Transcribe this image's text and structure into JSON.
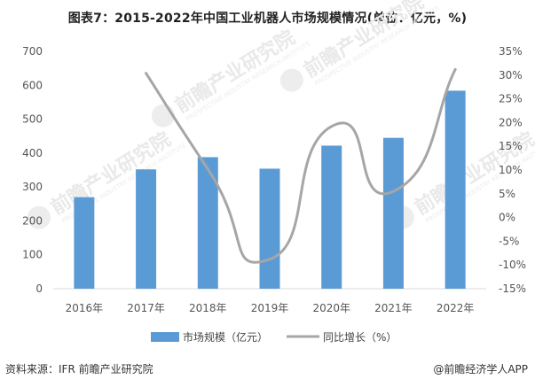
{
  "title": "图表7：2015-2022年中国工业机器人市场规模情况(单位：亿元，%)",
  "chart_data": {
    "type": "bar",
    "categories": [
      "2016年",
      "2017年",
      "2018年",
      "2019年",
      "2020年",
      "2021年",
      "2022年"
    ],
    "series": [
      {
        "name": "市场规模（亿元）",
        "type": "bar",
        "axis": "left",
        "values": [
          270,
          352,
          388,
          354,
          422,
          445,
          584
        ],
        "color": "#5b9bd5"
      },
      {
        "name": "同比增长（%）",
        "type": "line",
        "axis": "right",
        "values": [
          null,
          30.4,
          10.2,
          -8.8,
          19.2,
          5.5,
          31.2
        ],
        "color": "#a6a6a6"
      }
    ],
    "y_left": {
      "min": 0,
      "max": 700,
      "step": 100,
      "ticks": [
        "0",
        "100",
        "200",
        "300",
        "400",
        "500",
        "600",
        "700"
      ]
    },
    "y_right": {
      "min": -15,
      "max": 35,
      "step": 5,
      "ticks": [
        "-15%",
        "-10%",
        "-5%",
        "0%",
        "5%",
        "10%",
        "15%",
        "20%",
        "25%",
        "30%",
        "35%"
      ]
    },
    "legend": {
      "position": "bottom",
      "items": [
        "市场规模（亿元）",
        "同比增长（%）"
      ]
    },
    "grid": false
  },
  "watermark": {
    "text": "前瞻产业研究院",
    "sub": "PROSPECTIVE INDUSTRY RESEARCH INSTITUTE"
  },
  "footer": {
    "source": "资料来源：IFR 前瞻产业研究院",
    "brand": "@前瞻经济学人APP"
  }
}
